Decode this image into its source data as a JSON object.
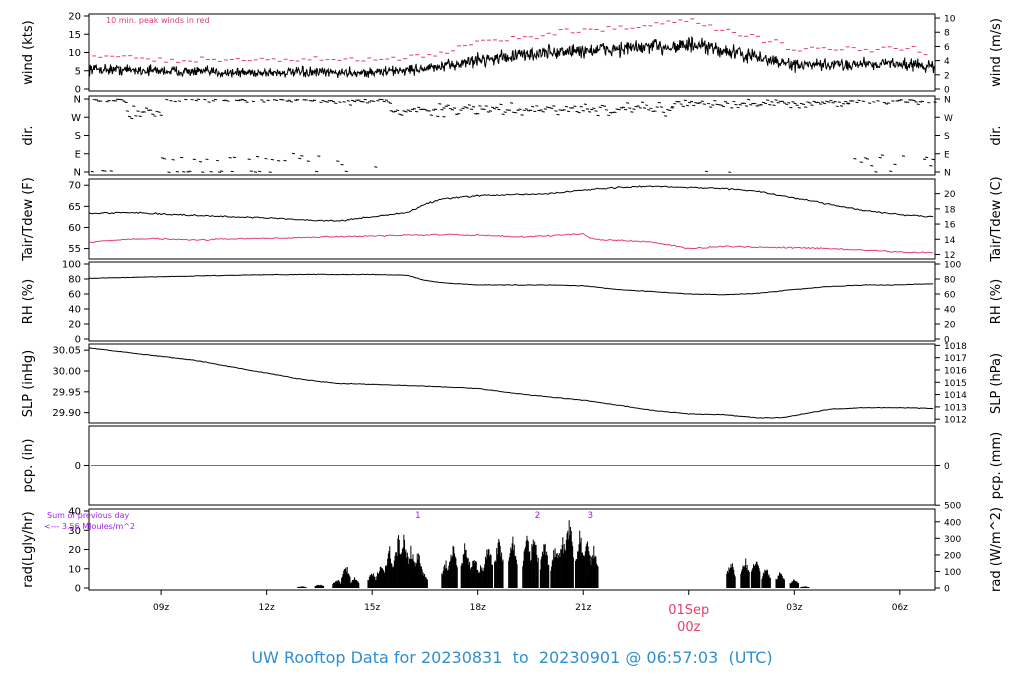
{
  "footer_title": "UW Rooftop Data for 20230831  to  20230901 @ 06:57:03  (UTC)",
  "colors": {
    "line": "#000000",
    "accent": "#e0406a",
    "title": "#2e8fd0",
    "purple": "#a020f0"
  },
  "time_axis": {
    "start_hour": 6.95,
    "end_hour": 31.0,
    "ticks": [
      {
        "hour": 9,
        "label": "09z"
      },
      {
        "hour": 12,
        "label": "12z"
      },
      {
        "hour": 15,
        "label": "15z"
      },
      {
        "hour": 18,
        "label": "18z"
      },
      {
        "hour": 21,
        "label": "21z"
      },
      {
        "hour": 24,
        "label": "00z"
      },
      {
        "hour": 27,
        "label": "03z"
      },
      {
        "hour": 30,
        "label": "06z"
      }
    ],
    "date_marker": {
      "hour": 24,
      "date_label": "01Sep",
      "time_label": "00z"
    }
  },
  "chart_data": [
    {
      "type": "line",
      "id": "wind",
      "ylabel": "wind (kts)",
      "ylabel_right": "wind (m/s)",
      "ylim": [
        0,
        20
      ],
      "left_ticks": [
        0,
        5,
        10,
        15,
        20
      ],
      "right_ticks": [
        0,
        2,
        4,
        6,
        8,
        10
      ],
      "right_factor": 1.9438,
      "annotation": "10 min. peak winds in red",
      "series": [
        {
          "values_kts_by_hour": [
            [
              7,
              5.5
            ],
            [
              9,
              5
            ],
            [
              11,
              4.5
            ],
            [
              13,
              4.5
            ],
            [
              15,
              4.5
            ],
            [
              17,
              6
            ],
            [
              18,
              8
            ],
            [
              19,
              9
            ],
            [
              20,
              10
            ],
            [
              21,
              10.5
            ],
            [
              22,
              11
            ],
            [
              23,
              11.5
            ],
            [
              24,
              12
            ],
            [
              25,
              10.5
            ],
            [
              26,
              8.5
            ],
            [
              27,
              6.5
            ],
            [
              28,
              6.5
            ],
            [
              29,
              7
            ],
            [
              30,
              7
            ],
            [
              31,
              6
            ]
          ]
        },
        {
          "name": "10 min. peak winds",
          "values_kts_by_hour": [
            [
              7,
              9
            ],
            [
              9,
              8
            ],
            [
              11,
              8
            ],
            [
              13,
              8
            ],
            [
              15,
              8
            ],
            [
              17,
              9.5
            ],
            [
              18,
              13
            ],
            [
              19,
              14
            ],
            [
              20,
              15
            ],
            [
              21,
              16
            ],
            [
              22,
              17
            ],
            [
              23,
              17.5
            ],
            [
              24,
              19
            ],
            [
              25,
              16
            ],
            [
              26,
              14
            ],
            [
              27,
              11
            ],
            [
              28,
              11
            ],
            [
              29,
              11
            ],
            [
              30,
              11
            ],
            [
              31,
              10
            ]
          ]
        }
      ]
    },
    {
      "type": "scatter",
      "id": "direction",
      "ylabel": "dir.",
      "ylabel_right": "dir.",
      "direction_labels": [
        "N",
        "E",
        "S",
        "W",
        "N"
      ],
      "segments": [
        {
          "start": 7.0,
          "end": 8.0,
          "center": 355,
          "spread": 12
        },
        {
          "start": 8.0,
          "end": 9.0,
          "center": 300,
          "spread": 40
        },
        {
          "start": 9.0,
          "end": 13.5,
          "center": 355,
          "spread": 10,
          "low_center": 70,
          "low_fraction": 0.3
        },
        {
          "start": 13.5,
          "end": 15.5,
          "center": 350,
          "spread": 12,
          "low_center": 60,
          "low_fraction": 0.15
        },
        {
          "start": 15.5,
          "end": 17.0,
          "center": 300,
          "spread": 25
        },
        {
          "start": 17.0,
          "end": 23.5,
          "center": 310,
          "spread": 25
        },
        {
          "start": 23.5,
          "end": 28.5,
          "center": 340,
          "spread": 20
        },
        {
          "start": 28.5,
          "end": 31.0,
          "center": 350,
          "spread": 15,
          "low_center": 60,
          "low_fraction": 0.3
        }
      ]
    },
    {
      "type": "line",
      "id": "temperature",
      "ylabel": "Tair/Tdew (F)",
      "ylabel_right": "Tair/Tdew (C)",
      "ylim": [
        53,
        71
      ],
      "left_ticks": [
        55,
        60,
        65,
        70
      ],
      "right_ticks": [
        12,
        14,
        16,
        18,
        20
      ],
      "series": [
        {
          "name": "Tair",
          "values": [
            [
              7,
              63.3
            ],
            [
              8,
              63.6
            ],
            [
              9,
              63.2
            ],
            [
              10,
              62.8
            ],
            [
              11,
              62.5
            ],
            [
              12,
              62.3
            ],
            [
              13,
              61.8
            ],
            [
              14,
              61.5
            ],
            [
              15,
              62.5
            ],
            [
              16,
              63.5
            ],
            [
              16.5,
              65.5
            ],
            [
              17,
              66.8
            ],
            [
              18,
              67.5
            ],
            [
              19,
              67.8
            ],
            [
              20,
              68
            ],
            [
              21,
              68.8
            ],
            [
              22,
              69.5
            ],
            [
              23,
              69.8
            ],
            [
              24,
              69.5
            ],
            [
              25,
              69.2
            ],
            [
              26,
              68.5
            ],
            [
              27,
              67
            ],
            [
              28,
              65.5
            ],
            [
              29,
              64
            ],
            [
              30,
              63
            ],
            [
              31,
              62.5
            ]
          ]
        },
        {
          "name": "Tdew",
          "values": [
            [
              7,
              56.5
            ],
            [
              8,
              57.2
            ],
            [
              9,
              57.3
            ],
            [
              10,
              57
            ],
            [
              11,
              57.3
            ],
            [
              12,
              57.4
            ],
            [
              13,
              57.6
            ],
            [
              14,
              57.8
            ],
            [
              15,
              58
            ],
            [
              16,
              58.2
            ],
            [
              17,
              58.3
            ],
            [
              18,
              58.2
            ],
            [
              19,
              57.8
            ],
            [
              20,
              58
            ],
            [
              21,
              58.5
            ],
            [
              21.3,
              57.2
            ],
            [
              22,
              57
            ],
            [
              23,
              56.5
            ],
            [
              24,
              55
            ],
            [
              25,
              55.5
            ],
            [
              26,
              55.3
            ],
            [
              27,
              55.2
            ],
            [
              28,
              55
            ],
            [
              29,
              54.6
            ],
            [
              30,
              54.2
            ],
            [
              31,
              54
            ]
          ]
        }
      ]
    },
    {
      "type": "line",
      "id": "humidity",
      "ylabel": "RH (%)",
      "ylabel_right": "RH (%)",
      "ylim": [
        0,
        100
      ],
      "left_ticks": [
        0,
        20,
        40,
        60,
        80,
        100
      ],
      "right_ticks": [
        0,
        20,
        40,
        60,
        80,
        100
      ],
      "series": [
        {
          "name": "RH",
          "values": [
            [
              7,
              81
            ],
            [
              9,
              83
            ],
            [
              11,
              85
            ],
            [
              13,
              86
            ],
            [
              15,
              86
            ],
            [
              16,
              85
            ],
            [
              16.5,
              78
            ],
            [
              17,
              75
            ],
            [
              18,
              72
            ],
            [
              19,
              72
            ],
            [
              20,
              72
            ],
            [
              21,
              71
            ],
            [
              22,
              66
            ],
            [
              23,
              63
            ],
            [
              24,
              60
            ],
            [
              25,
              59
            ],
            [
              26,
              61
            ],
            [
              27,
              66
            ],
            [
              28,
              70
            ],
            [
              29,
              72
            ],
            [
              30,
              72
            ],
            [
              31,
              74
            ]
          ]
        }
      ]
    },
    {
      "type": "line",
      "id": "pressure",
      "ylabel": "SLP (inHg)",
      "ylabel_right": "SLP (hPa)",
      "ylim": [
        29.88,
        30.06
      ],
      "left_ticks": [
        29.9,
        29.95,
        30.0,
        30.05
      ],
      "left_tick_labels": [
        "29.90",
        "29.95",
        "30.00",
        "30.05"
      ],
      "right_ticks": [
        1012,
        1013,
        1014,
        1015,
        1016,
        1017,
        1018
      ],
      "series": [
        {
          "name": "SLP",
          "values": [
            [
              7,
              30.055
            ],
            [
              8,
              30.045
            ],
            [
              9,
              30.035
            ],
            [
              10,
              30.025
            ],
            [
              11,
              30.01
            ],
            [
              12,
              29.995
            ],
            [
              13,
              29.98
            ],
            [
              14,
              29.97
            ],
            [
              15,
              29.968
            ],
            [
              16,
              29.965
            ],
            [
              17,
              29.962
            ],
            [
              18,
              29.958
            ],
            [
              19,
              29.947
            ],
            [
              20,
              29.938
            ],
            [
              21,
              29.93
            ],
            [
              22,
              29.918
            ],
            [
              23,
              29.905
            ],
            [
              24,
              29.897
            ],
            [
              25,
              29.895
            ],
            [
              26,
              29.887
            ],
            [
              26.7,
              29.888
            ],
            [
              27,
              29.893
            ],
            [
              28,
              29.908
            ],
            [
              29,
              29.912
            ],
            [
              30,
              29.912
            ],
            [
              31,
              29.91
            ]
          ]
        }
      ]
    },
    {
      "type": "line",
      "id": "precipitation",
      "ylabel": "pcp. (in)",
      "ylabel_right": "pcp. (mm)",
      "ylim": [
        -1,
        1
      ],
      "left_ticks": [
        0
      ],
      "right_ticks": [
        0
      ],
      "series": [
        {
          "name": "precipitation",
          "values": [
            [
              7,
              0
            ],
            [
              31,
              0
            ]
          ]
        }
      ]
    },
    {
      "type": "bar",
      "id": "radiation",
      "ylabel": "rad(Lgly/hr)",
      "ylabel_right": "rad (W/m^2)",
      "ylim": [
        0,
        40
      ],
      "left_ticks": [
        0,
        10,
        20,
        30,
        40
      ],
      "right_ticks": [
        0,
        100,
        200,
        300,
        400,
        500
      ],
      "right_factor": 0.08599,
      "annotation_lines": [
        "Sum of previous day",
        "<--- 3.56 MJoules/m^2"
      ],
      "markers": [
        {
          "hour": 16.3,
          "label": "1"
        },
        {
          "hour": 19.7,
          "label": "2"
        },
        {
          "hour": 21.2,
          "label": "3"
        }
      ],
      "pulses": [
        {
          "hour": 13.0,
          "value": 1
        },
        {
          "hour": 13.5,
          "value": 2
        },
        {
          "hour": 14.0,
          "value": 5
        },
        {
          "hour": 14.25,
          "value": 13
        },
        {
          "hour": 14.5,
          "value": 6
        },
        {
          "hour": 15.0,
          "value": 9
        },
        {
          "hour": 15.25,
          "value": 14
        },
        {
          "hour": 15.5,
          "value": 22
        },
        {
          "hour": 15.75,
          "value": 28
        },
        {
          "hour": 15.9,
          "value": 31
        },
        {
          "hour": 16.1,
          "value": 23
        },
        {
          "hour": 16.3,
          "value": 21
        },
        {
          "hour": 16.45,
          "value": 10
        },
        {
          "hour": 17.1,
          "value": 15
        },
        {
          "hour": 17.3,
          "value": 24
        },
        {
          "hour": 17.65,
          "value": 26
        },
        {
          "hour": 17.9,
          "value": 19
        },
        {
          "hour": 18.1,
          "value": 13
        },
        {
          "hour": 18.3,
          "value": 25
        },
        {
          "hour": 18.6,
          "value": 28
        },
        {
          "hour": 19.0,
          "value": 28
        },
        {
          "hour": 19.4,
          "value": 29
        },
        {
          "hour": 19.6,
          "value": 30
        },
        {
          "hour": 19.9,
          "value": 25
        },
        {
          "hour": 20.2,
          "value": 24
        },
        {
          "hour": 20.4,
          "value": 30
        },
        {
          "hour": 20.6,
          "value": 39
        },
        {
          "hour": 20.9,
          "value": 31
        },
        {
          "hour": 21.1,
          "value": 29
        },
        {
          "hour": 21.3,
          "value": 23
        },
        {
          "hour": 25.2,
          "value": 16
        },
        {
          "hour": 25.6,
          "value": 17
        },
        {
          "hour": 25.9,
          "value": 17
        },
        {
          "hour": 26.2,
          "value": 12
        },
        {
          "hour": 26.6,
          "value": 9
        },
        {
          "hour": 27.0,
          "value": 5
        },
        {
          "hour": 27.3,
          "value": 1
        }
      ]
    }
  ]
}
